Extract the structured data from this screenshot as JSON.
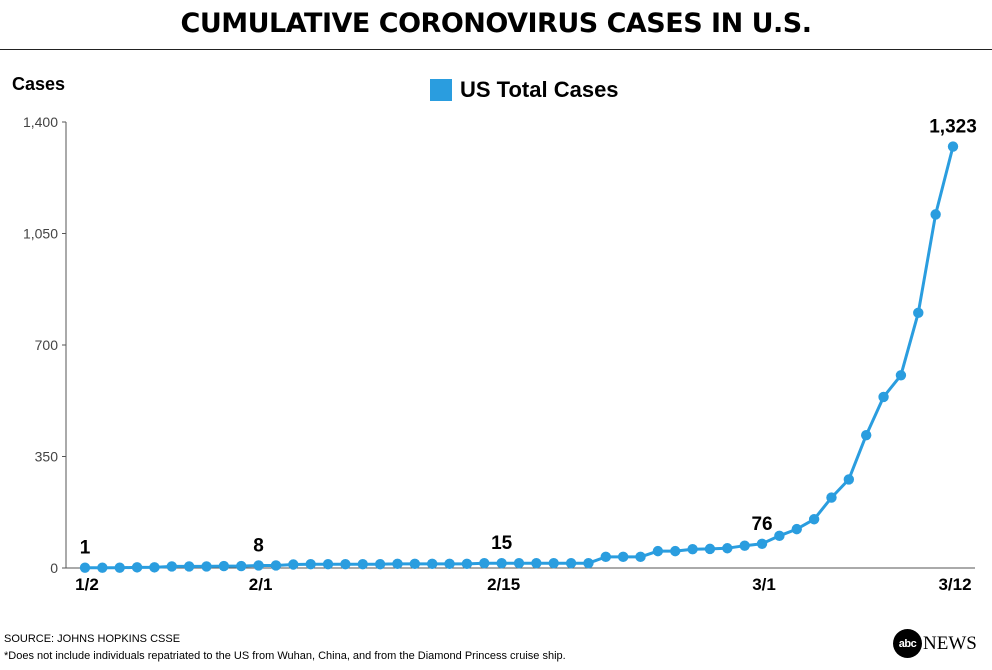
{
  "title": "CUMULATIVE CORONOVIRUS CASES IN U.S.",
  "source": "SOURCE: JOHNS HOPKINS CSSE",
  "note": "*Does not include individuals repatriated to the US from Wuhan, China, and from the Diamond Princess cruise ship.",
  "logo": {
    "mark": "abc",
    "text": "NEWS"
  },
  "colors": {
    "series": "#2a9ddf",
    "axis": "#333333"
  },
  "chart_data": {
    "type": "line",
    "title": "CUMULATIVE CORONOVIRUS CASES IN U.S.",
    "ylabel": "Cases",
    "xlabel": "",
    "ylim": [
      0,
      1400
    ],
    "y_ticks": [
      0,
      350,
      700,
      1050,
      1400
    ],
    "y_tick_labels": [
      "0",
      "350",
      "700",
      "1,050",
      "1,400"
    ],
    "x_tick_labels": [
      {
        "index": 0,
        "label": "1/2"
      },
      {
        "index": 10,
        "label": "2/1"
      },
      {
        "index": 24,
        "label": "2/15"
      },
      {
        "index": 39,
        "label": "3/1"
      },
      {
        "index": 50,
        "label": "3/12"
      }
    ],
    "legend_position": "top-center",
    "grid": false,
    "series": [
      {
        "name": "US Total Cases",
        "color": "#2a9ddf",
        "values": [
          1,
          1,
          1,
          2,
          2,
          5,
          5,
          5,
          6,
          6,
          8,
          8,
          11,
          12,
          12,
          12,
          12,
          12,
          13,
          13,
          13,
          13,
          13,
          15,
          15,
          15,
          15,
          15,
          15,
          15,
          35,
          35,
          35,
          53,
          53,
          59,
          60,
          62,
          70,
          76,
          101,
          122,
          153,
          221,
          278,
          417,
          537,
          605,
          801,
          1110,
          1323
        ]
      }
    ],
    "annotations": [
      {
        "index": 0,
        "text": "1"
      },
      {
        "index": 10,
        "text": "8"
      },
      {
        "index": 24,
        "text": "15"
      },
      {
        "index": 39,
        "text": "76"
      },
      {
        "index": 50,
        "text": "1,323"
      }
    ]
  }
}
